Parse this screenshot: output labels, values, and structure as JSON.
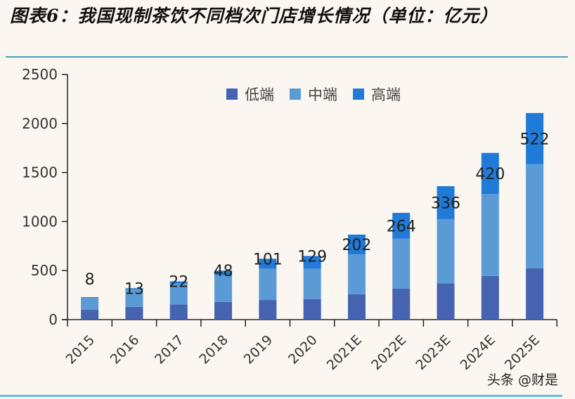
{
  "title": "图表6：我国现制茶饮不同档次门店增长情况（单位：亿元）",
  "watermark": "头条 @财是",
  "colors": {
    "low": "#4563b0",
    "mid": "#5b9bd5",
    "high": "#1f7ad8",
    "background": "#fbf6f0",
    "rule": "#4b9fb8"
  },
  "chart_data": {
    "type": "bar",
    "stacked": true,
    "title": "我国现制茶饮不同档次门店增长情况（单位：亿元）",
    "xlabel": "",
    "ylabel": "",
    "ylim": [
      0,
      2500
    ],
    "yticks": [
      0,
      500,
      1000,
      1500,
      2000,
      2500
    ],
    "grid": false,
    "legend_position": "top-center",
    "categories": [
      "2015",
      "2016",
      "2017",
      "2018",
      "2019",
      "2020",
      "2021E",
      "2022E",
      "2023E",
      "2024E",
      "2025E"
    ],
    "series": [
      {
        "name": "低端",
        "color": "#4563b0",
        "values": [
          100,
          130,
          155,
          180,
          200,
          210,
          260,
          315,
          370,
          445,
          525
        ]
      },
      {
        "name": "中端",
        "color": "#5b9bd5",
        "values": [
          121,
          177,
          213,
          272,
          320,
          310,
          405,
          510,
          655,
          835,
          1060
        ]
      },
      {
        "name": "高端",
        "color": "#1f7ad8",
        "values": [
          8,
          13,
          22,
          48,
          101,
          129,
          202,
          264,
          336,
          420,
          522
        ]
      }
    ],
    "data_labels": [
      "8",
      "13",
      "22",
      "48",
      "101",
      "129",
      "202",
      "264",
      "336",
      "420",
      "522"
    ]
  }
}
